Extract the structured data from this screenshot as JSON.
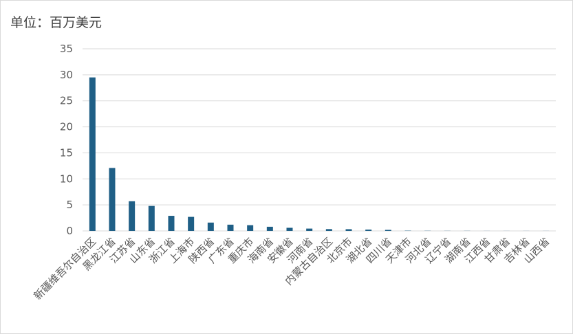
{
  "unit_label": "单位：百万美元",
  "chart_data": {
    "type": "bar",
    "title": "",
    "xlabel": "",
    "ylabel": "",
    "ylim": [
      0,
      35
    ],
    "yticks": [
      0,
      5,
      10,
      15,
      20,
      25,
      30,
      35
    ],
    "grid": true,
    "legend": "none",
    "bar_color": "#1f5f86",
    "categories": [
      "新疆维吾尔自治区",
      "黑龙江省",
      "江苏省",
      "山东省",
      "浙江省",
      "上海市",
      "陕西省",
      "广东省",
      "重庆市",
      "海南省",
      "安徽省",
      "河南省",
      "内蒙古自治区",
      "北京市",
      "湖北省",
      "四川省",
      "天津市",
      "河北省",
      "辽宁省",
      "湖南省",
      "江西省",
      "甘肃省",
      "吉林省",
      "山西省"
    ],
    "values": [
      29.5,
      12.1,
      5.7,
      4.8,
      2.9,
      2.7,
      1.6,
      1.2,
      1.1,
      0.8,
      0.6,
      0.45,
      0.35,
      0.33,
      0.25,
      0.2,
      0.05,
      0.03,
      0.02,
      0.02,
      0.01,
      0.01,
      0.01,
      0.01
    ]
  }
}
